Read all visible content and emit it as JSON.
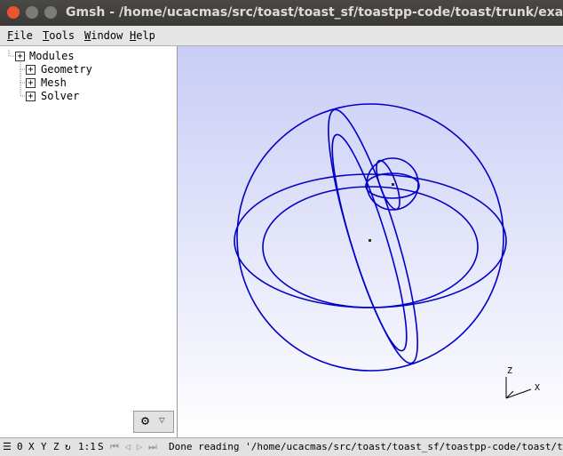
{
  "window": {
    "title": "Gmsh - /home/ucacmas/src/toast/toast_sf/toastpp-code/toast/trunk/example"
  },
  "menu": [
    "File",
    "Tools",
    "Window",
    "Help"
  ],
  "tree": {
    "root": "Modules",
    "children": [
      "Geometry",
      "Mesh",
      "Solver"
    ]
  },
  "viewer": {
    "axes": [
      "Z",
      "X"
    ]
  },
  "status": {
    "buttons": [
      "0",
      "X",
      "Y",
      "Z",
      "1:1",
      "S"
    ],
    "message": "Done reading '/home/ucacmas/src/toast/toast_sf/toastpp-code/toast/trunk/ex"
  }
}
